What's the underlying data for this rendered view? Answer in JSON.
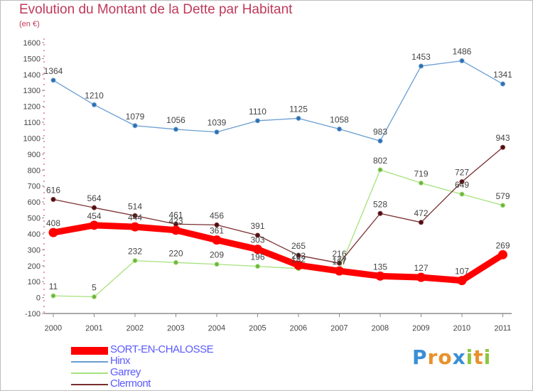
{
  "chart_data": {
    "type": "line",
    "title": "Evolution du Montant de la Dette par Habitant",
    "subtitle": "(en €)",
    "xlabel": "",
    "ylabel": "",
    "x": [
      "2000",
      "2001",
      "2002",
      "2003",
      "2004",
      "2005",
      "2006",
      "2007",
      "2008",
      "2009",
      "2010",
      "2011"
    ],
    "ylim": [
      -100,
      1600
    ],
    "yticks": [
      -100,
      0,
      100,
      200,
      300,
      400,
      500,
      600,
      700,
      800,
      900,
      1000,
      1100,
      1200,
      1300,
      1400,
      1500,
      1600
    ],
    "grid": false,
    "legend_position": "bottom-left",
    "series": [
      {
        "name": "SORT-EN-CHALOSSE",
        "color": "#ff0000",
        "label_color": "#5a5aff",
        "values": [
          408,
          454,
          444,
          423,
          361,
          303,
          203,
          167,
          135,
          127,
          107,
          269
        ]
      },
      {
        "name": "Hinx",
        "color": "#6a9ed2",
        "values": [
          1364,
          1210,
          1079,
          1056,
          1039,
          1110,
          1125,
          1058,
          983,
          1453,
          1486,
          1341
        ]
      },
      {
        "name": "Garrey",
        "color": "#a6e27c",
        "values": [
          11,
          5,
          232,
          220,
          209,
          196,
          182,
          177,
          802,
          719,
          649,
          579
        ]
      },
      {
        "name": "Clermont",
        "color": "#7a2e30",
        "values": [
          616,
          564,
          514,
          461,
          456,
          391,
          265,
          216,
          528,
          472,
          727,
          943
        ]
      }
    ]
  },
  "logo": {
    "letters": [
      "P",
      "r",
      "o",
      "x",
      "i",
      "t",
      "i"
    ],
    "colors": [
      "#3a8ed6",
      "#e8912c",
      "#e8912c",
      "#3a8ed6",
      "#8cc63f",
      "#e8912c",
      "#8cc63f"
    ]
  }
}
